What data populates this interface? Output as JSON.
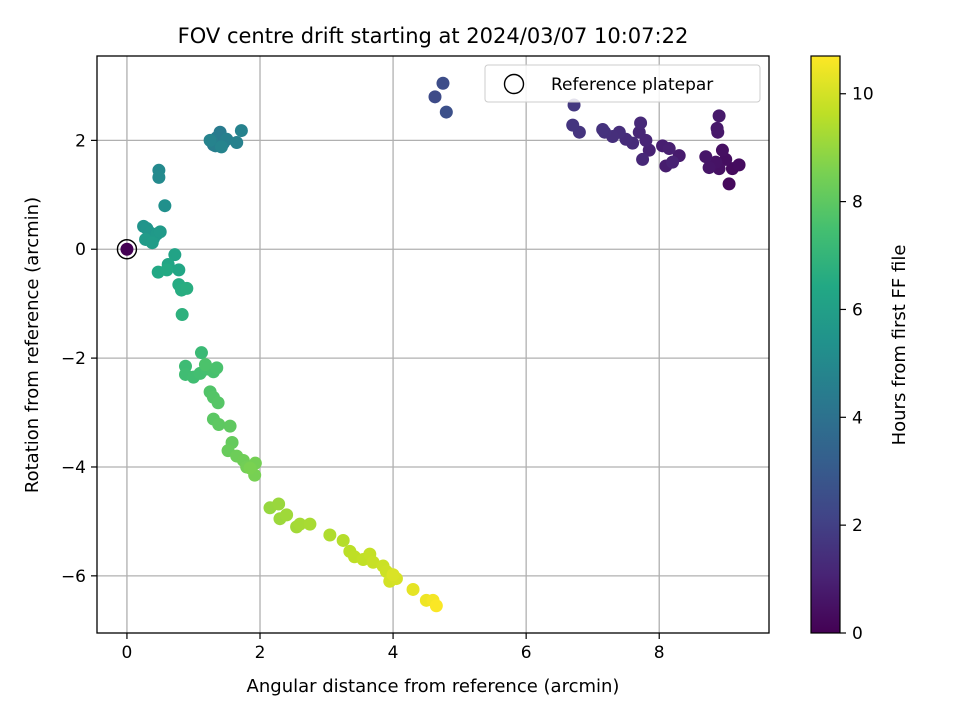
{
  "chart_data": {
    "type": "scatter",
    "title": "FOV centre drift starting at 2024/03/07 10:07:22",
    "xlabel": "Angular distance from reference (arcmin)",
    "ylabel": "Rotation from reference (arcmin)",
    "xlim": [
      -0.45,
      9.65
    ],
    "ylim": [
      -7.05,
      3.55
    ],
    "xticks": [
      0,
      2,
      4,
      6,
      8
    ],
    "yticks": [
      -6,
      -4,
      -2,
      0,
      2
    ],
    "xtick_labels": [
      "0",
      "2",
      "4",
      "6",
      "8"
    ],
    "ytick_labels": [
      "−6",
      "−4",
      "−2",
      "0",
      "2"
    ],
    "grid": true,
    "legend": {
      "placement": "top-right",
      "label": "Reference platepar"
    },
    "reference_point": {
      "x": 0,
      "y": 0
    },
    "colorbar": {
      "label": "Hours from first FF file",
      "colormap": "viridis",
      "range": [
        0,
        10.7
      ],
      "ticks": [
        0,
        2,
        4,
        6,
        8,
        10
      ],
      "tick_labels": [
        "0",
        "2",
        "4",
        "6",
        "8",
        "10"
      ]
    },
    "points": [
      {
        "x": 0.0,
        "y": 0.0,
        "t": 0.0
      },
      {
        "x": 9.05,
        "y": 1.2,
        "t": 0.25
      },
      {
        "x": 9.1,
        "y": 1.48,
        "t": 0.3
      },
      {
        "x": 9.2,
        "y": 1.55,
        "t": 0.35
      },
      {
        "x": 9.0,
        "y": 1.65,
        "t": 0.4
      },
      {
        "x": 8.95,
        "y": 1.82,
        "t": 0.45
      },
      {
        "x": 8.9,
        "y": 1.48,
        "t": 0.5
      },
      {
        "x": 8.85,
        "y": 1.6,
        "t": 0.55
      },
      {
        "x": 8.75,
        "y": 1.5,
        "t": 0.6
      },
      {
        "x": 8.7,
        "y": 1.7,
        "t": 0.65
      },
      {
        "x": 8.88,
        "y": 2.15,
        "t": 0.7
      },
      {
        "x": 8.87,
        "y": 2.22,
        "t": 0.72
      },
      {
        "x": 8.9,
        "y": 2.45,
        "t": 0.75
      },
      {
        "x": 8.3,
        "y": 1.72,
        "t": 0.8
      },
      {
        "x": 8.1,
        "y": 1.53,
        "t": 0.85
      },
      {
        "x": 8.05,
        "y": 1.9,
        "t": 0.9
      },
      {
        "x": 8.15,
        "y": 1.85,
        "t": 0.95
      },
      {
        "x": 8.2,
        "y": 1.6,
        "t": 1.0
      },
      {
        "x": 7.85,
        "y": 1.82,
        "t": 1.05
      },
      {
        "x": 7.8,
        "y": 2.0,
        "t": 1.1
      },
      {
        "x": 7.7,
        "y": 2.15,
        "t": 1.15
      },
      {
        "x": 7.75,
        "y": 1.65,
        "t": 1.2
      },
      {
        "x": 7.72,
        "y": 2.32,
        "t": 1.25
      },
      {
        "x": 7.6,
        "y": 1.95,
        "t": 1.3
      },
      {
        "x": 7.5,
        "y": 2.02,
        "t": 1.35
      },
      {
        "x": 7.4,
        "y": 2.15,
        "t": 1.4
      },
      {
        "x": 7.3,
        "y": 2.07,
        "t": 1.45
      },
      {
        "x": 7.18,
        "y": 2.15,
        "t": 1.5
      },
      {
        "x": 7.15,
        "y": 2.2,
        "t": 1.55
      },
      {
        "x": 6.8,
        "y": 2.15,
        "t": 1.6
      },
      {
        "x": 6.7,
        "y": 2.28,
        "t": 1.65
      },
      {
        "x": 6.72,
        "y": 2.65,
        "t": 1.75
      },
      {
        "x": 4.63,
        "y": 2.8,
        "t": 2.4
      },
      {
        "x": 4.75,
        "y": 3.05,
        "t": 2.5
      },
      {
        "x": 4.8,
        "y": 2.52,
        "t": 2.6
      },
      {
        "x": 1.3,
        "y": 1.92,
        "t": 4.3
      },
      {
        "x": 1.35,
        "y": 2.05,
        "t": 4.35
      },
      {
        "x": 1.4,
        "y": 2.15,
        "t": 4.4
      },
      {
        "x": 1.45,
        "y": 1.95,
        "t": 4.45
      },
      {
        "x": 1.28,
        "y": 2.0,
        "t": 4.5
      },
      {
        "x": 1.33,
        "y": 1.9,
        "t": 4.55
      },
      {
        "x": 1.5,
        "y": 2.02,
        "t": 4.6
      },
      {
        "x": 1.65,
        "y": 1.96,
        "t": 4.65
      },
      {
        "x": 1.72,
        "y": 2.18,
        "t": 4.7
      },
      {
        "x": 1.25,
        "y": 2.0,
        "t": 4.75
      },
      {
        "x": 1.42,
        "y": 1.88,
        "t": 4.8
      },
      {
        "x": 0.48,
        "y": 1.45,
        "t": 5.0
      },
      {
        "x": 0.48,
        "y": 1.32,
        "t": 5.05
      },
      {
        "x": 0.57,
        "y": 0.8,
        "t": 5.3
      },
      {
        "x": 0.25,
        "y": 0.42,
        "t": 5.5
      },
      {
        "x": 0.3,
        "y": 0.38,
        "t": 5.55
      },
      {
        "x": 0.35,
        "y": 0.3,
        "t": 5.6
      },
      {
        "x": 0.4,
        "y": 0.2,
        "t": 5.65
      },
      {
        "x": 0.45,
        "y": 0.28,
        "t": 5.7
      },
      {
        "x": 0.5,
        "y": 0.32,
        "t": 5.75
      },
      {
        "x": 0.28,
        "y": 0.18,
        "t": 5.8
      },
      {
        "x": 0.38,
        "y": 0.12,
        "t": 5.85
      },
      {
        "x": 0.72,
        "y": -0.1,
        "t": 6.2
      },
      {
        "x": 0.62,
        "y": -0.28,
        "t": 6.3
      },
      {
        "x": 0.78,
        "y": -0.38,
        "t": 6.35
      },
      {
        "x": 0.47,
        "y": -0.42,
        "t": 6.4
      },
      {
        "x": 0.6,
        "y": -0.38,
        "t": 6.45
      },
      {
        "x": 0.78,
        "y": -0.65,
        "t": 6.55
      },
      {
        "x": 0.82,
        "y": -0.75,
        "t": 6.6
      },
      {
        "x": 0.9,
        "y": -0.72,
        "t": 6.65
      },
      {
        "x": 0.83,
        "y": -1.2,
        "t": 6.8
      },
      {
        "x": 1.12,
        "y": -1.9,
        "t": 7.2
      },
      {
        "x": 0.88,
        "y": -2.15,
        "t": 7.3
      },
      {
        "x": 0.88,
        "y": -2.3,
        "t": 7.35
      },
      {
        "x": 1.0,
        "y": -2.35,
        "t": 7.4
      },
      {
        "x": 1.1,
        "y": -2.28,
        "t": 7.45
      },
      {
        "x": 1.2,
        "y": -2.2,
        "t": 7.5
      },
      {
        "x": 1.3,
        "y": -2.25,
        "t": 7.55
      },
      {
        "x": 1.35,
        "y": -2.18,
        "t": 7.6
      },
      {
        "x": 1.18,
        "y": -2.12,
        "t": 7.65
      },
      {
        "x": 1.25,
        "y": -2.62,
        "t": 7.75
      },
      {
        "x": 1.3,
        "y": -2.72,
        "t": 7.8
      },
      {
        "x": 1.37,
        "y": -2.82,
        "t": 7.85
      },
      {
        "x": 1.3,
        "y": -3.12,
        "t": 7.95
      },
      {
        "x": 1.38,
        "y": -3.22,
        "t": 8.0
      },
      {
        "x": 1.55,
        "y": -3.25,
        "t": 8.05
      },
      {
        "x": 1.58,
        "y": -3.55,
        "t": 8.15
      },
      {
        "x": 1.52,
        "y": -3.7,
        "t": 8.2
      },
      {
        "x": 1.65,
        "y": -3.8,
        "t": 8.3
      },
      {
        "x": 1.75,
        "y": -3.88,
        "t": 8.35
      },
      {
        "x": 1.8,
        "y": -4.0,
        "t": 8.4
      },
      {
        "x": 1.93,
        "y": -3.93,
        "t": 8.45
      },
      {
        "x": 1.92,
        "y": -4.15,
        "t": 8.5
      },
      {
        "x": 1.85,
        "y": -4.02,
        "t": 8.55
      },
      {
        "x": 2.15,
        "y": -4.75,
        "t": 9.0
      },
      {
        "x": 2.28,
        "y": -4.68,
        "t": 9.05
      },
      {
        "x": 2.3,
        "y": -4.95,
        "t": 9.1
      },
      {
        "x": 2.4,
        "y": -4.88,
        "t": 9.15
      },
      {
        "x": 2.55,
        "y": -5.1,
        "t": 9.2
      },
      {
        "x": 2.6,
        "y": -5.05,
        "t": 9.25
      },
      {
        "x": 2.75,
        "y": -5.05,
        "t": 9.3
      },
      {
        "x": 3.05,
        "y": -5.25,
        "t": 9.4
      },
      {
        "x": 3.25,
        "y": -5.35,
        "t": 9.5
      },
      {
        "x": 3.35,
        "y": -5.55,
        "t": 9.6
      },
      {
        "x": 3.42,
        "y": -5.65,
        "t": 9.65
      },
      {
        "x": 3.55,
        "y": -5.7,
        "t": 9.7
      },
      {
        "x": 3.65,
        "y": -5.6,
        "t": 9.75
      },
      {
        "x": 3.7,
        "y": -5.75,
        "t": 9.8
      },
      {
        "x": 3.85,
        "y": -5.82,
        "t": 9.85
      },
      {
        "x": 3.9,
        "y": -5.92,
        "t": 9.9
      },
      {
        "x": 3.95,
        "y": -6.1,
        "t": 10.0
      },
      {
        "x": 4.05,
        "y": -6.05,
        "t": 10.05
      },
      {
        "x": 4.0,
        "y": -5.98,
        "t": 10.1
      },
      {
        "x": 4.3,
        "y": -6.25,
        "t": 10.3
      },
      {
        "x": 4.5,
        "y": -6.45,
        "t": 10.45
      },
      {
        "x": 4.6,
        "y": -6.45,
        "t": 10.55
      },
      {
        "x": 4.65,
        "y": -6.55,
        "t": 10.65
      }
    ]
  }
}
